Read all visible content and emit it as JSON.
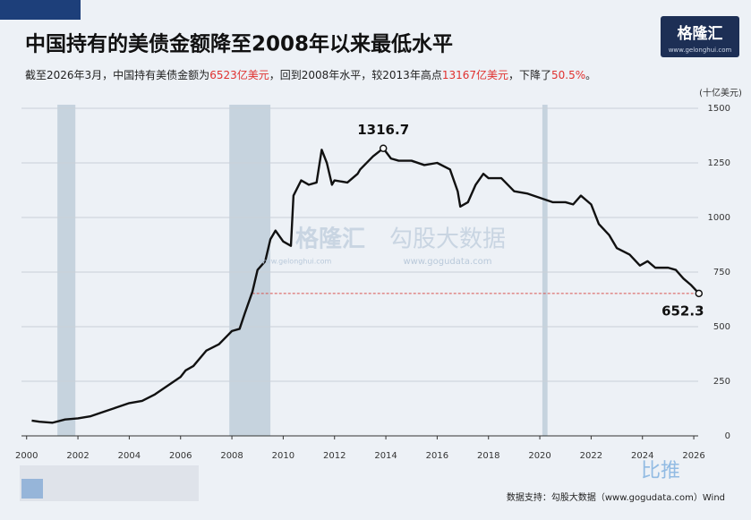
{
  "chart_data": {
    "type": "line",
    "title": "中国持有的美债金额降至2008年以来最低水平",
    "subtitle": [
      {
        "text": "截至2026年3月，中国持有美债金额为"
      },
      {
        "text": "6523亿美元",
        "color": "#e0312f"
      },
      {
        "text": "，回到2008年水平，较2013年高点"
      },
      {
        "text": "13167亿美元",
        "color": "#e0312f"
      },
      {
        "text": "，下降了"
      },
      {
        "text": "50.5%",
        "color": "#e0312f"
      },
      {
        "text": "。"
      }
    ],
    "y_label": "(十亿美元)",
    "source": "数据支持：勾股大数据（www.gogudata.com）Wind",
    "logo": {
      "name": "格隆汇",
      "url": "www.gelonghui.com"
    },
    "watermarks": [
      "格隆汇",
      "www.gelonghui.com",
      "勾股大数据",
      "www.gogudata.com",
      "比推"
    ],
    "xlim": [
      1999.8,
      2026.8
    ],
    "xticks": [
      2000,
      2002,
      2004,
      2006,
      2008,
      2010,
      2012,
      2014,
      2016,
      2018,
      2020,
      2022,
      2024,
      2026
    ],
    "ylim": [
      0,
      1500
    ],
    "yticks": [
      0,
      250,
      500,
      750,
      1000,
      1250,
      1500
    ],
    "grid": true,
    "shaded_ranges": [
      [
        2001.2,
        2001.9
      ],
      [
        2007.9,
        2009.5
      ],
      [
        2020.1,
        2020.3
      ]
    ],
    "shade_color": "#c6d3de",
    "reference_color": "#d9534f",
    "series": [
      {
        "name": "中国持有美债金额",
        "color": "#111111",
        "x": [
          2000.2,
          2000.5,
          2001,
          2001.5,
          2002,
          2002.5,
          2003,
          2003.5,
          2004,
          2004.5,
          2005,
          2005.5,
          2006,
          2006.2,
          2006.5,
          2007,
          2007.5,
          2008,
          2008.3,
          2008.5,
          2008.8,
          2009,
          2009.3,
          2009.5,
          2009.7,
          2010,
          2010.3,
          2010.4,
          2010.7,
          2011,
          2011.3,
          2011.5,
          2011.7,
          2011.9,
          2012,
          2012.5,
          2012.9,
          2013,
          2013.5,
          2013.9,
          2014.2,
          2014.5,
          2015,
          2015.5,
          2016,
          2016.5,
          2016.8,
          2016.9,
          2017.2,
          2017.5,
          2017.8,
          2018,
          2018.5,
          2019,
          2019.5,
          2020,
          2020.5,
          2021,
          2021.3,
          2021.6,
          2022,
          2022.3,
          2022.7,
          2023,
          2023.5,
          2023.9,
          2024.2,
          2024.5,
          2025,
          2025.3,
          2025.6,
          2025.9,
          2026.2
        ],
        "values": [
          70,
          65,
          60,
          75,
          80,
          90,
          110,
          130,
          150,
          160,
          190,
          230,
          270,
          300,
          320,
          390,
          420,
          480,
          490,
          560,
          660,
          760,
          800,
          900,
          940,
          890,
          870,
          1100,
          1170,
          1150,
          1160,
          1310,
          1250,
          1150,
          1170,
          1160,
          1200,
          1220,
          1280,
          1316.7,
          1270,
          1260,
          1260,
          1240,
          1250,
          1220,
          1120,
          1050,
          1070,
          1150,
          1200,
          1180,
          1180,
          1120,
          1110,
          1090,
          1070,
          1070,
          1060,
          1100,
          1060,
          970,
          920,
          860,
          830,
          780,
          800,
          770,
          770,
          760,
          720,
          690,
          652.3
        ]
      }
    ]
  }
}
